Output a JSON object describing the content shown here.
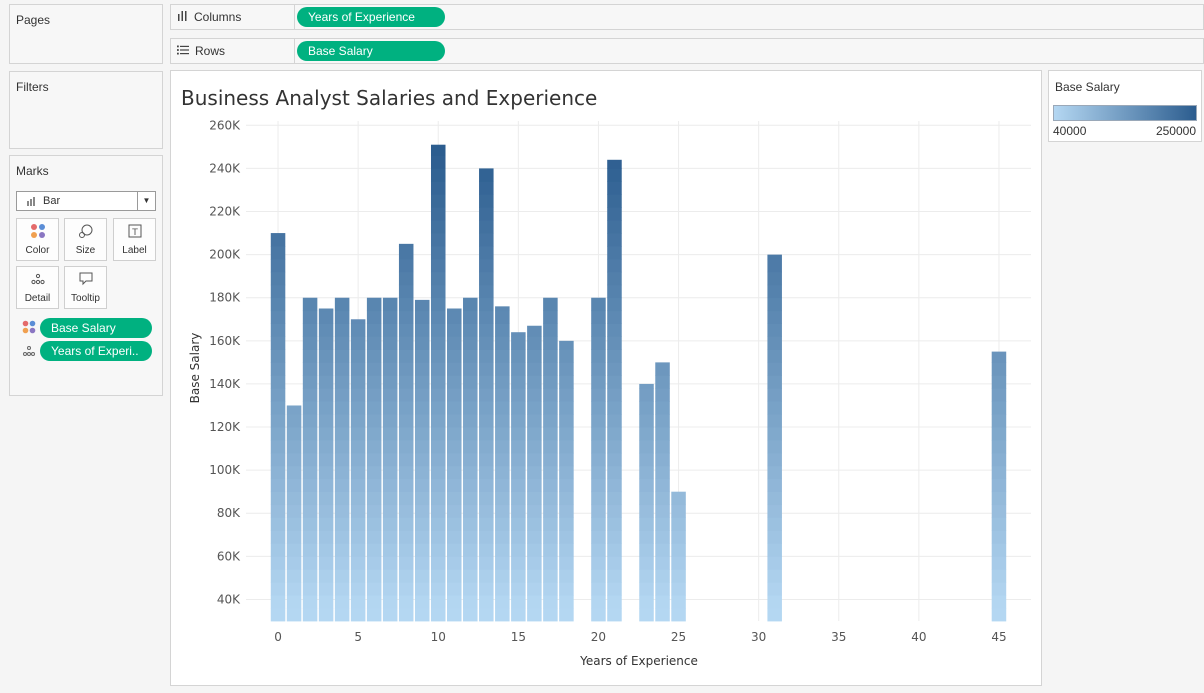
{
  "shelves": {
    "pages_title": "Pages",
    "filters_title": "Filters",
    "columns": {
      "label": "Columns",
      "pill": "Years of Experience"
    },
    "rows": {
      "label": "Rows",
      "pill": "Base Salary"
    }
  },
  "marks": {
    "title": "Marks",
    "type": "Bar",
    "buttons": {
      "color": "Color",
      "size": "Size",
      "label": "Label",
      "detail": "Detail",
      "tooltip": "Tooltip"
    },
    "fields": [
      {
        "icon": "color-dots-icon",
        "label": "Base Salary"
      },
      {
        "icon": "detail-dots-icon",
        "label": "Years of Experi.."
      }
    ]
  },
  "legend": {
    "title": "Base Salary",
    "min": "40000",
    "max": "250000",
    "colors": [
      "#b4d7f2",
      "#2c5d8f"
    ]
  },
  "chart_data": {
    "type": "bar",
    "title": "Business Analyst Salaries and Experience",
    "xlabel": "Years of Experience",
    "ylabel": "Base Salary",
    "x_ticks": [
      0,
      5,
      10,
      15,
      20,
      25,
      30,
      35,
      40,
      45
    ],
    "y_ticks": [
      "40K",
      "60K",
      "80K",
      "100K",
      "120K",
      "140K",
      "160K",
      "180K",
      "200K",
      "220K",
      "240K",
      "260K"
    ],
    "y_tick_values": [
      40000,
      60000,
      80000,
      100000,
      120000,
      140000,
      160000,
      180000,
      200000,
      220000,
      240000,
      260000
    ],
    "xlim": [
      -2,
      47
    ],
    "ylim": [
      30000,
      262000
    ],
    "grid": true,
    "color_scale": {
      "min": 40000,
      "max": 250000
    },
    "bars": [
      {
        "x": 0,
        "y": 210000
      },
      {
        "x": 1,
        "y": 130000
      },
      {
        "x": 2,
        "y": 180000
      },
      {
        "x": 3,
        "y": 175000
      },
      {
        "x": 4,
        "y": 180000
      },
      {
        "x": 5,
        "y": 170000
      },
      {
        "x": 6,
        "y": 180000
      },
      {
        "x": 7,
        "y": 180000
      },
      {
        "x": 8,
        "y": 205000
      },
      {
        "x": 9,
        "y": 179000
      },
      {
        "x": 10,
        "y": 251000
      },
      {
        "x": 11,
        "y": 175000
      },
      {
        "x": 12,
        "y": 180000
      },
      {
        "x": 13,
        "y": 240000
      },
      {
        "x": 14,
        "y": 176000
      },
      {
        "x": 15,
        "y": 164000
      },
      {
        "x": 16,
        "y": 167000
      },
      {
        "x": 17,
        "y": 180000
      },
      {
        "x": 18,
        "y": 160000
      },
      {
        "x": 20,
        "y": 180000
      },
      {
        "x": 21,
        "y": 244000
      },
      {
        "x": 23,
        "y": 140000
      },
      {
        "x": 24,
        "y": 150000
      },
      {
        "x": 25,
        "y": 90000
      },
      {
        "x": 31,
        "y": 200000
      },
      {
        "x": 45,
        "y": 155000
      }
    ]
  }
}
